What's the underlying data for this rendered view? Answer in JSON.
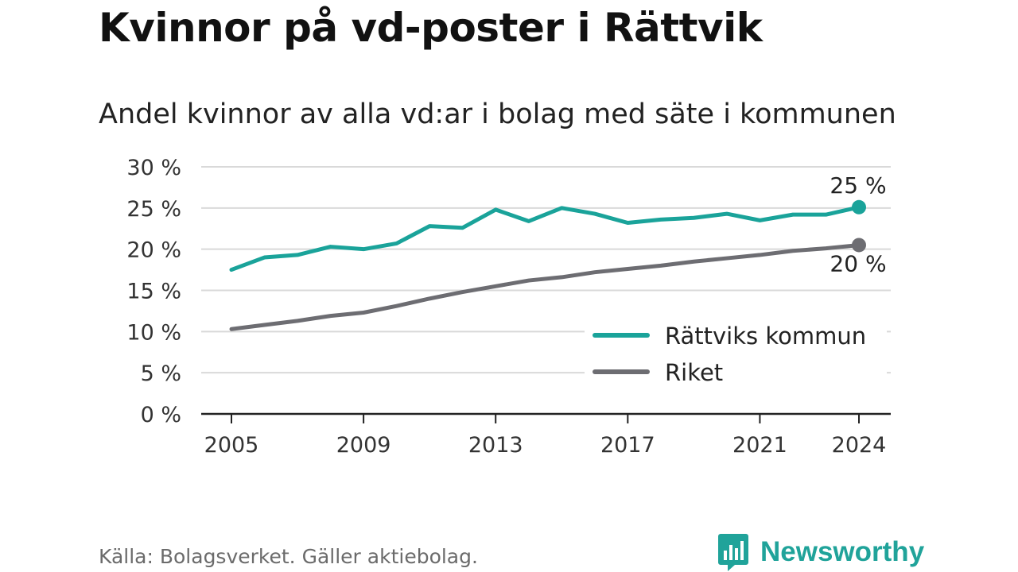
{
  "title": "Kvinnor på vd-poster i Rättvik",
  "subtitle": "Andel kvinnor av alla vd:ar i bolag med säte i kommunen",
  "source": "Källa: Bolagsverket. Gäller aktiebolag.",
  "brand": {
    "name": "Newsworthy",
    "color": "#20a39a",
    "icon": "bar-chart-logo-icon"
  },
  "chart_data": {
    "type": "line",
    "x": [
      2005,
      2006,
      2007,
      2008,
      2009,
      2010,
      2011,
      2012,
      2013,
      2014,
      2015,
      2016,
      2017,
      2018,
      2019,
      2020,
      2021,
      2022,
      2023,
      2024
    ],
    "series": [
      {
        "name": "Rättviks kommun",
        "color": "#1aa39a",
        "values": [
          17.5,
          19.0,
          19.3,
          20.3,
          20.0,
          20.7,
          22.8,
          22.6,
          24.8,
          23.4,
          25.0,
          24.3,
          23.2,
          23.6,
          23.8,
          24.3,
          23.5,
          24.2,
          24.2,
          25.1
        ]
      },
      {
        "name": "Riket",
        "color": "#6d6d72",
        "values": [
          10.3,
          10.8,
          11.3,
          11.9,
          12.3,
          13.1,
          14.0,
          14.8,
          15.5,
          16.2,
          16.6,
          17.2,
          17.6,
          18.0,
          18.5,
          18.9,
          19.3,
          19.8,
          20.1,
          20.5
        ]
      }
    ],
    "ylim": [
      0,
      30
    ],
    "yticks": [
      0,
      5,
      10,
      15,
      20,
      25,
      30
    ],
    "ytick_labels": [
      "0 %",
      "5 %",
      "10 %",
      "15 %",
      "20 %",
      "25 %",
      "30 %"
    ],
    "xticks": [
      2005,
      2009,
      2013,
      2017,
      2021,
      2024
    ],
    "xtick_labels": [
      "2005",
      "2009",
      "2013",
      "2017",
      "2021",
      "2024"
    ],
    "end_labels": [
      "25 %",
      "20 %"
    ],
    "grid": true,
    "legend_position": "bottom-right",
    "xlabel": "",
    "ylabel": ""
  }
}
